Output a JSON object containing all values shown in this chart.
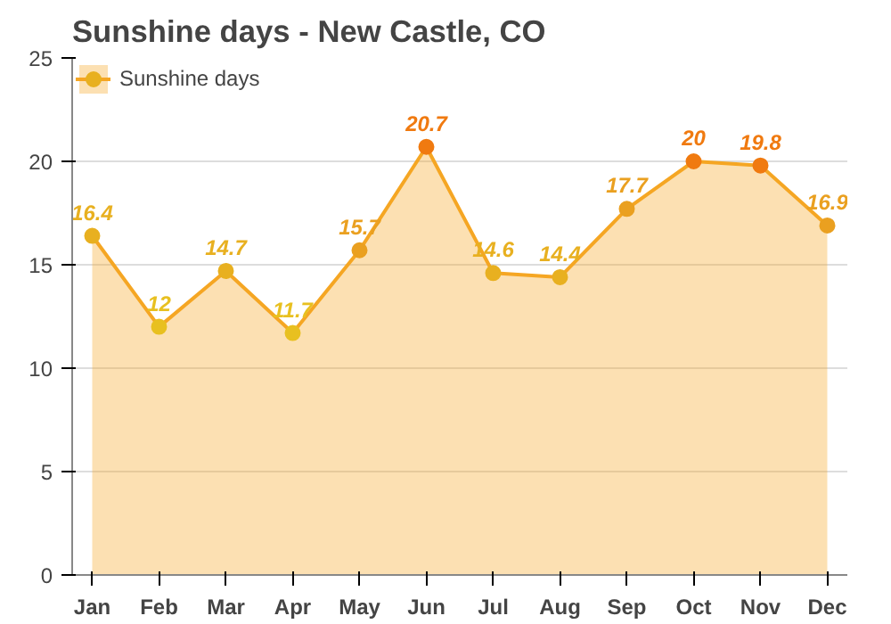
{
  "chart_data": {
    "type": "area",
    "title": "Sunshine days - New Castle, CO",
    "categories": [
      "Jan",
      "Feb",
      "Mar",
      "Apr",
      "May",
      "Jun",
      "Jul",
      "Aug",
      "Sep",
      "Oct",
      "Nov",
      "Dec"
    ],
    "series": [
      {
        "name": "Sunshine days",
        "color": "#f5a623",
        "values": [
          16.4,
          12,
          14.7,
          11.7,
          15.7,
          20.7,
          14.6,
          14.4,
          17.7,
          20,
          19.8,
          16.9
        ],
        "colors": [
          "#e8b020",
          "#e8c020",
          "#e8b020",
          "#e8c020",
          "#eaa020",
          "#f07a10",
          "#e8b020",
          "#e8b020",
          "#eaa020",
          "#f07a10",
          "#f07a10",
          "#eaa020"
        ]
      }
    ],
    "ylim": [
      0,
      25
    ],
    "yticks": [
      0,
      5,
      10,
      15,
      20,
      25
    ],
    "grid": "y",
    "legend": "top left",
    "marker": "circle",
    "data_labels": true
  }
}
